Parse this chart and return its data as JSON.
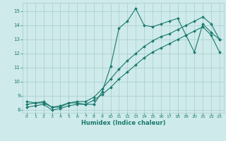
{
  "xlabel": "Humidex (Indice chaleur)",
  "bg_color": "#ceeaea",
  "line_color": "#1a7a6e",
  "grid_color": "#aacccc",
  "xlim": [
    -0.5,
    23.5
  ],
  "ylim": [
    7.8,
    15.6
  ],
  "xticks": [
    0,
    1,
    2,
    3,
    4,
    5,
    6,
    7,
    8,
    9,
    10,
    11,
    12,
    13,
    14,
    15,
    16,
    17,
    18,
    19,
    20,
    21,
    22,
    23
  ],
  "yticks": [
    8,
    9,
    10,
    11,
    12,
    13,
    14,
    15
  ],
  "line1_x": [
    0,
    1,
    2,
    3,
    4,
    5,
    6,
    7,
    8,
    9,
    10,
    11,
    12,
    13,
    14,
    15,
    16,
    17,
    18,
    19,
    20,
    21,
    22,
    23
  ],
  "line1_y": [
    8.6,
    8.5,
    8.5,
    8.2,
    8.2,
    8.5,
    8.5,
    8.4,
    8.4,
    9.3,
    11.1,
    13.8,
    14.3,
    15.2,
    14.0,
    13.9,
    14.1,
    14.3,
    14.5,
    13.3,
    12.1,
    14.1,
    13.5,
    13.0
  ],
  "line2_x": [
    0,
    1,
    2,
    3,
    4,
    5,
    6,
    7,
    8,
    9,
    10,
    11,
    12,
    13,
    14,
    15,
    16,
    17,
    18,
    19,
    20,
    21,
    22,
    23
  ],
  "line2_y": [
    8.4,
    8.5,
    8.6,
    8.2,
    8.3,
    8.5,
    8.6,
    8.6,
    8.9,
    9.5,
    10.2,
    10.9,
    11.5,
    12.0,
    12.5,
    12.9,
    13.2,
    13.4,
    13.7,
    14.0,
    14.3,
    14.6,
    14.1,
    13.0
  ],
  "line3_x": [
    0,
    1,
    2,
    3,
    4,
    5,
    6,
    7,
    8,
    9,
    10,
    11,
    12,
    13,
    14,
    15,
    16,
    17,
    18,
    19,
    20,
    21,
    22,
    23
  ],
  "line3_y": [
    8.2,
    8.3,
    8.4,
    8.0,
    8.1,
    8.3,
    8.4,
    8.4,
    8.7,
    9.1,
    9.6,
    10.2,
    10.7,
    11.2,
    11.7,
    12.1,
    12.4,
    12.7,
    13.0,
    13.3,
    13.6,
    13.9,
    13.3,
    12.1
  ]
}
